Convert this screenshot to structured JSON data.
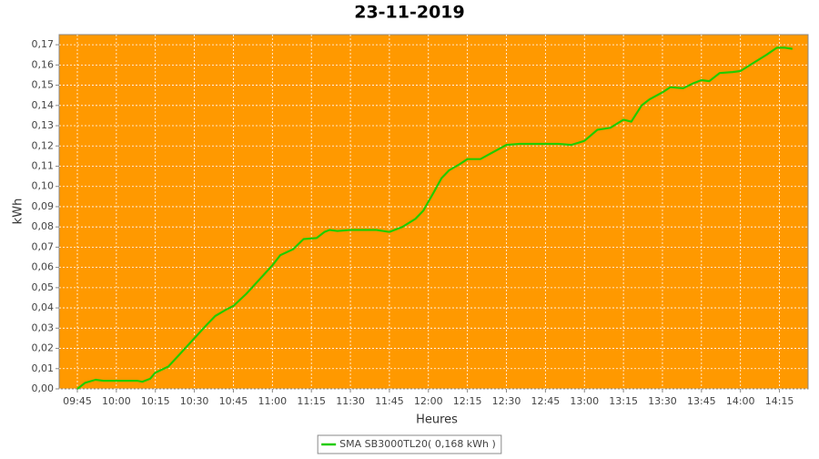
{
  "chart_data": {
    "type": "line",
    "title": "23-11-2019",
    "x_label": "Heures",
    "y_label": "kWh",
    "x": [
      "09:45",
      "09:48",
      "09:52",
      "09:55",
      "10:00",
      "10:05",
      "10:08",
      "10:10",
      "10:13",
      "10:15",
      "10:20",
      "10:25",
      "10:30",
      "10:35",
      "10:38",
      "10:42",
      "10:45",
      "10:50",
      "10:55",
      "11:00",
      "11:03",
      "11:08",
      "11:12",
      "11:17",
      "11:20",
      "11:22",
      "11:25",
      "11:30",
      "11:40",
      "11:45",
      "11:50",
      "11:55",
      "11:58",
      "12:02",
      "12:05",
      "12:08",
      "12:12",
      "12:15",
      "12:20",
      "12:25",
      "12:30",
      "12:35",
      "12:40",
      "12:50",
      "12:55",
      "13:00",
      "13:05",
      "13:10",
      "13:15",
      "13:18",
      "13:22",
      "13:25",
      "13:30",
      "13:33",
      "13:38",
      "13:42",
      "13:45",
      "13:48",
      "13:52",
      "13:57",
      "14:00",
      "14:05",
      "14:10",
      "14:14",
      "14:17",
      "14:20"
    ],
    "series": [
      {
        "name": "SMA SB3000TL20( 0,168 kWh )",
        "color": "#22cc00",
        "values": [
          0.0,
          0.003,
          0.0045,
          0.004,
          0.004,
          0.004,
          0.004,
          0.0035,
          0.005,
          0.008,
          0.011,
          0.018,
          0.025,
          0.032,
          0.036,
          0.039,
          0.041,
          0.047,
          0.054,
          0.061,
          0.066,
          0.069,
          0.074,
          0.0745,
          0.0775,
          0.0785,
          0.078,
          0.0785,
          0.0785,
          0.0775,
          0.08,
          0.084,
          0.088,
          0.097,
          0.104,
          0.108,
          0.111,
          0.1135,
          0.1135,
          0.117,
          0.1205,
          0.121,
          0.121,
          0.121,
          0.1205,
          0.1225,
          0.128,
          0.129,
          0.133,
          0.132,
          0.14,
          0.143,
          0.1465,
          0.149,
          0.1485,
          0.151,
          0.1525,
          0.152,
          0.156,
          0.1565,
          0.157,
          0.161,
          0.165,
          0.1685,
          0.1685,
          0.168
        ]
      }
    ],
    "xlim": [
      "09:38",
      "14:26"
    ],
    "xticks": [
      "09:45",
      "10:00",
      "10:15",
      "10:30",
      "10:45",
      "11:00",
      "11:15",
      "11:30",
      "11:45",
      "12:00",
      "12:15",
      "12:30",
      "12:45",
      "13:00",
      "13:15",
      "13:30",
      "13:45",
      "14:00",
      "14:15"
    ],
    "ylim": [
      0,
      0.175
    ],
    "yticks": [
      {
        "value": 0,
        "label": "0,00"
      },
      {
        "value": 0.01,
        "label": "0,01"
      },
      {
        "value": 0.02,
        "label": "0,02"
      },
      {
        "value": 0.03,
        "label": "0,03"
      },
      {
        "value": 0.04,
        "label": "0,04"
      },
      {
        "value": 0.05,
        "label": "0,05"
      },
      {
        "value": 0.06,
        "label": "0,06"
      },
      {
        "value": 0.07,
        "label": "0,07"
      },
      {
        "value": 0.08,
        "label": "0,08"
      },
      {
        "value": 0.09,
        "label": "0,09"
      },
      {
        "value": 0.1,
        "label": "0,10"
      },
      {
        "value": 0.11,
        "label": "0,11"
      },
      {
        "value": 0.12,
        "label": "0,12"
      },
      {
        "value": 0.13,
        "label": "0,13"
      },
      {
        "value": 0.14,
        "label": "0,14"
      },
      {
        "value": 0.15,
        "label": "0,15"
      },
      {
        "value": 0.16,
        "label": "0,16"
      },
      {
        "value": 0.17,
        "label": "0,17"
      }
    ],
    "grid": true,
    "plot_background": "#ff9900",
    "legend": "bottom"
  }
}
